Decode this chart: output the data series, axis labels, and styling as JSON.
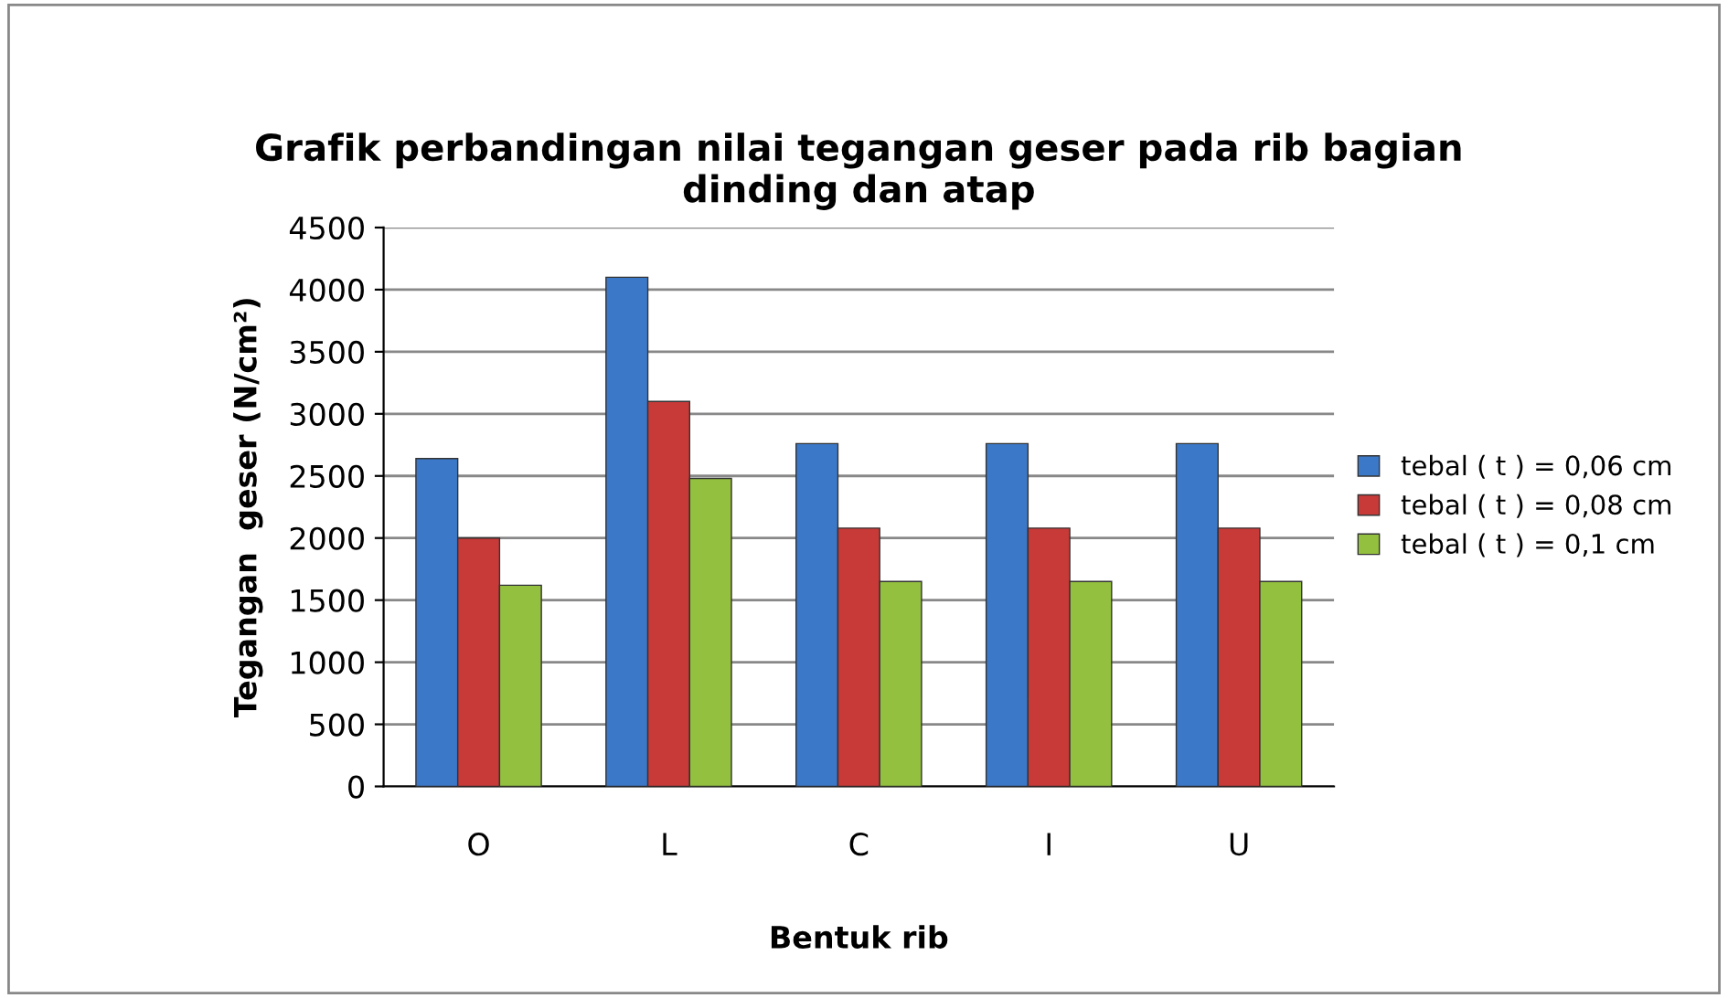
{
  "chart_data": {
    "type": "bar",
    "title": "Grafik perbandingan nilai tegangan geser pada rib bagian\ndinding dan atap",
    "xlabel": "Bentuk rib",
    "ylabel": "Tegangan  geser (N/cm²)",
    "categories": [
      "O",
      "L",
      "C",
      "I",
      "U"
    ],
    "series": [
      {
        "name": "tebal ( t ) = 0,06 cm",
        "color": "#3c78c8",
        "values": [
          2640,
          4100,
          2760,
          2760,
          2760
        ]
      },
      {
        "name": "tebal ( t ) = 0,08 cm",
        "color": "#c83a38",
        "values": [
          2000,
          3100,
          2080,
          2080,
          2080
        ]
      },
      {
        "name": "tebal ( t ) = 0,1 cm",
        "color": "#94c040",
        "values": [
          1620,
          2480,
          1650,
          1650,
          1650
        ]
      }
    ],
    "ylim": [
      0,
      4500
    ],
    "yticks": [
      0,
      500,
      1000,
      1500,
      2000,
      2500,
      3000,
      3500,
      4000,
      4500
    ],
    "grid": "y",
    "legend": "right"
  }
}
